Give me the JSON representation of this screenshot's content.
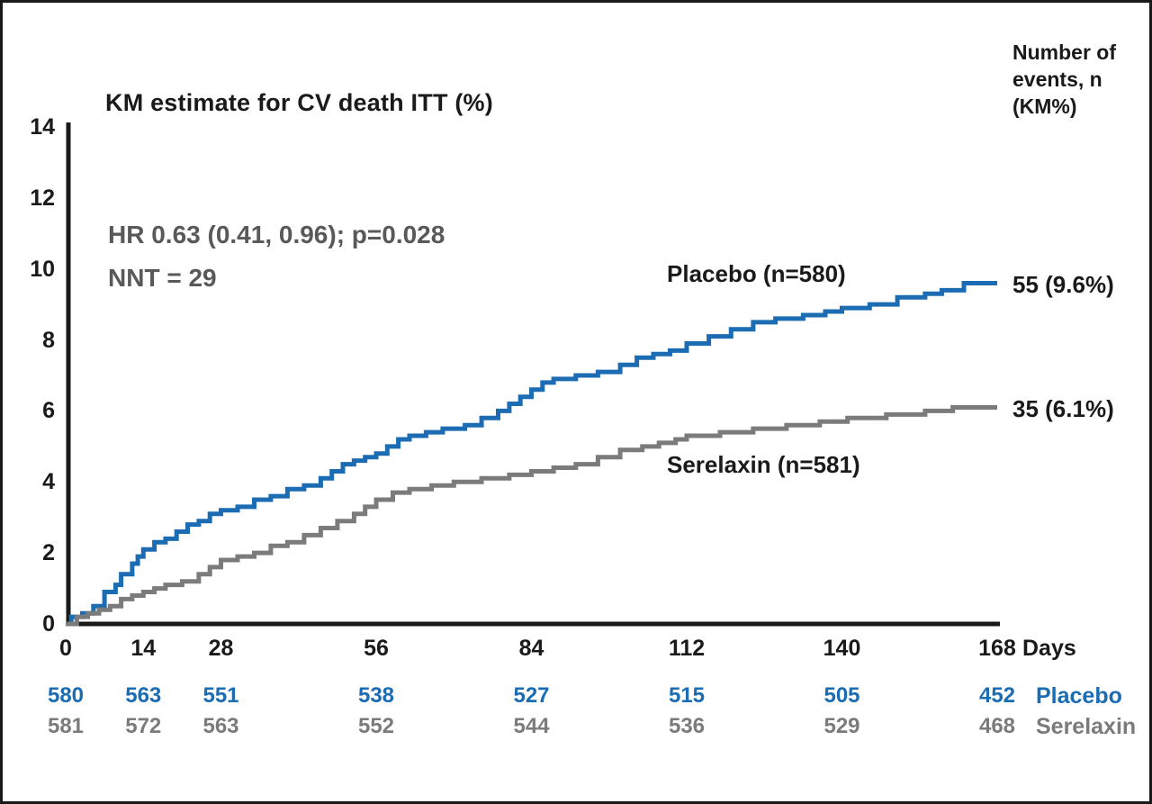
{
  "figure": {
    "title": "KM estimate for CV death ITT (%)",
    "hr_line": "HR 0.63 (0.41, 0.96); p=0.028",
    "nnt_line": "NNT = 29",
    "events_header_lines": [
      "Number of",
      "events, n",
      "(KM%)"
    ],
    "colors": {
      "placebo_blue": "#1B6CB3",
      "serelaxin_gray": "#7B7B7B",
      "axis_black": "#1A1A1A",
      "hr_text_gray": "#595959"
    }
  },
  "chart_data": {
    "type": "line",
    "subtype": "kaplan-meier-step",
    "title": "KM estimate for CV death ITT (%)",
    "xlabel": "Days",
    "ylabel": "KM estimate for CV death ITT (%)",
    "xlim": [
      0,
      168
    ],
    "ylim": [
      0,
      14
    ],
    "x_ticks": [
      0,
      14,
      28,
      56,
      84,
      112,
      140,
      168
    ],
    "y_ticks": [
      0,
      2,
      4,
      6,
      8,
      10,
      12,
      14
    ],
    "grid": false,
    "legend_position": "inline-curve-labels",
    "annotations": [
      "HR 0.63 (0.41, 0.96); p=0.028",
      "NNT = 29",
      "Number of events, n (KM%)"
    ],
    "series": [
      {
        "name": "Placebo (n=580)",
        "color": "#1B6CB3",
        "end_label": "55 (9.6%)",
        "points": [
          [
            0,
            0
          ],
          [
            1,
            0.2
          ],
          [
            3,
            0.3
          ],
          [
            5,
            0.5
          ],
          [
            7,
            0.9
          ],
          [
            9,
            1.1
          ],
          [
            10,
            1.4
          ],
          [
            12,
            1.7
          ],
          [
            13,
            1.9
          ],
          [
            14,
            2.1
          ],
          [
            16,
            2.3
          ],
          [
            18,
            2.4
          ],
          [
            20,
            2.6
          ],
          [
            22,
            2.8
          ],
          [
            24,
            2.9
          ],
          [
            26,
            3.1
          ],
          [
            28,
            3.2
          ],
          [
            31,
            3.3
          ],
          [
            34,
            3.5
          ],
          [
            37,
            3.6
          ],
          [
            40,
            3.8
          ],
          [
            43,
            3.9
          ],
          [
            46,
            4.1
          ],
          [
            48,
            4.3
          ],
          [
            50,
            4.5
          ],
          [
            52,
            4.6
          ],
          [
            54,
            4.7
          ],
          [
            56,
            4.8
          ],
          [
            58,
            5.0
          ],
          [
            60,
            5.2
          ],
          [
            62,
            5.3
          ],
          [
            65,
            5.4
          ],
          [
            68,
            5.5
          ],
          [
            72,
            5.6
          ],
          [
            75,
            5.8
          ],
          [
            78,
            6.0
          ],
          [
            80,
            6.2
          ],
          [
            82,
            6.4
          ],
          [
            84,
            6.6
          ],
          [
            86,
            6.8
          ],
          [
            88,
            6.9
          ],
          [
            92,
            7.0
          ],
          [
            96,
            7.1
          ],
          [
            100,
            7.3
          ],
          [
            103,
            7.5
          ],
          [
            106,
            7.6
          ],
          [
            109,
            7.7
          ],
          [
            112,
            7.9
          ],
          [
            116,
            8.1
          ],
          [
            120,
            8.3
          ],
          [
            124,
            8.5
          ],
          [
            128,
            8.6
          ],
          [
            133,
            8.7
          ],
          [
            137,
            8.8
          ],
          [
            140,
            8.9
          ],
          [
            145,
            9.0
          ],
          [
            150,
            9.2
          ],
          [
            155,
            9.3
          ],
          [
            158,
            9.4
          ],
          [
            162,
            9.6
          ],
          [
            168,
            9.6
          ]
        ]
      },
      {
        "name": "Serelaxin (n=581)",
        "color": "#7B7B7B",
        "end_label": "35 (6.1%)",
        "points": [
          [
            0,
            0
          ],
          [
            2,
            0.2
          ],
          [
            4,
            0.3
          ],
          [
            6,
            0.4
          ],
          [
            8,
            0.5
          ],
          [
            10,
            0.7
          ],
          [
            12,
            0.8
          ],
          [
            14,
            0.9
          ],
          [
            16,
            1.0
          ],
          [
            18,
            1.1
          ],
          [
            21,
            1.2
          ],
          [
            24,
            1.4
          ],
          [
            26,
            1.6
          ],
          [
            28,
            1.8
          ],
          [
            31,
            1.9
          ],
          [
            34,
            2.0
          ],
          [
            37,
            2.2
          ],
          [
            40,
            2.3
          ],
          [
            43,
            2.5
          ],
          [
            46,
            2.7
          ],
          [
            49,
            2.9
          ],
          [
            52,
            3.1
          ],
          [
            54,
            3.3
          ],
          [
            56,
            3.5
          ],
          [
            59,
            3.7
          ],
          [
            62,
            3.8
          ],
          [
            66,
            3.9
          ],
          [
            70,
            4.0
          ],
          [
            75,
            4.1
          ],
          [
            80,
            4.2
          ],
          [
            84,
            4.3
          ],
          [
            88,
            4.4
          ],
          [
            92,
            4.5
          ],
          [
            96,
            4.7
          ],
          [
            100,
            4.9
          ],
          [
            104,
            5.0
          ],
          [
            107,
            5.1
          ],
          [
            110,
            5.2
          ],
          [
            112,
            5.3
          ],
          [
            118,
            5.4
          ],
          [
            124,
            5.5
          ],
          [
            130,
            5.6
          ],
          [
            136,
            5.7
          ],
          [
            141,
            5.8
          ],
          [
            148,
            5.9
          ],
          [
            155,
            6.0
          ],
          [
            160,
            6.1
          ],
          [
            168,
            6.1
          ]
        ]
      }
    ]
  },
  "at_risk": {
    "days": [
      0,
      14,
      28,
      56,
      84,
      112,
      140,
      168
    ],
    "rows": [
      {
        "label": "Placebo",
        "color": "#1B6CB3",
        "values": [
          "580",
          "563",
          "551",
          "538",
          "527",
          "515",
          "505",
          "452"
        ]
      },
      {
        "label": "Serelaxin",
        "color": "#7B7B7B",
        "values": [
          "581",
          "572",
          "563",
          "552",
          "544",
          "536",
          "529",
          "468"
        ]
      }
    ]
  }
}
